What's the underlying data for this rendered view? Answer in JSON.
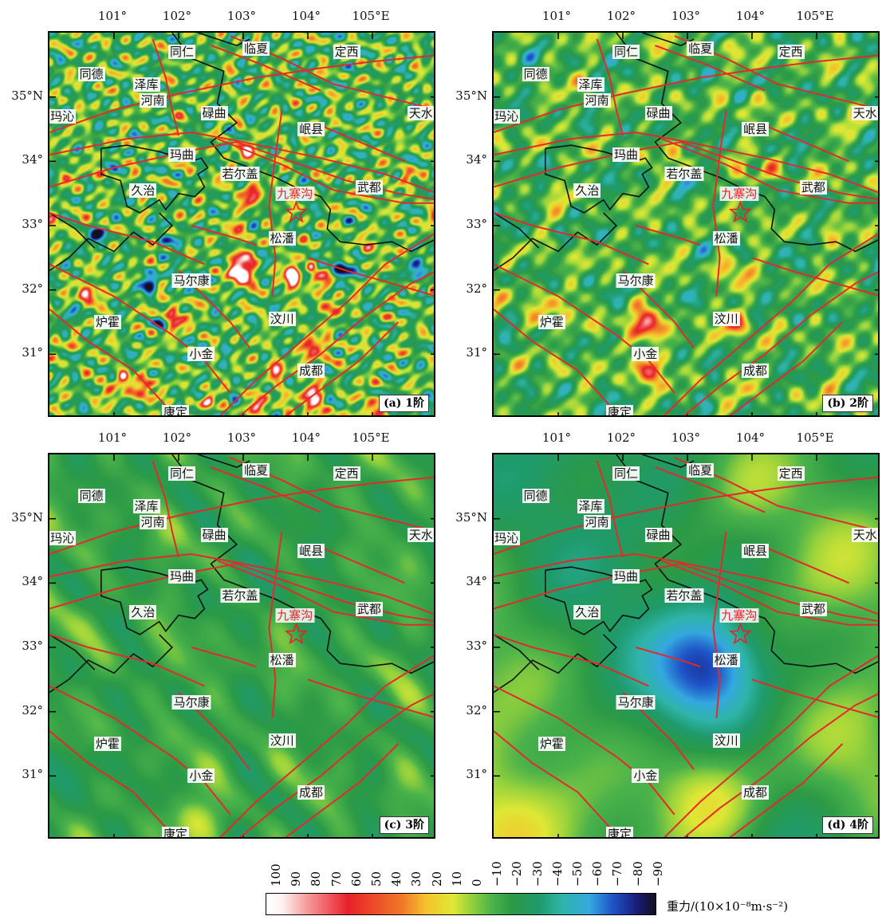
{
  "panels": [
    {
      "id": "a",
      "tag": "(a) 1阶",
      "left_lons": [
        "101°",
        "102°",
        "103°",
        "104°",
        "105°E"
      ],
      "lats": [
        "35°N",
        "34°",
        "33°",
        "32°",
        "31°"
      ]
    },
    {
      "id": "b",
      "tag": "(b) 2阶",
      "left_lons": [
        "101°",
        "102°",
        "103°",
        "104°",
        "105°E"
      ],
      "lats": [
        "35°N",
        "34°",
        "33°",
        "32°",
        "31°"
      ]
    },
    {
      "id": "c",
      "tag": "(c) 3阶",
      "left_lons": [
        "101°",
        "102°",
        "103°",
        "104°",
        "105°E"
      ],
      "lats": [
        "35°N",
        "34°",
        "33°",
        "32°",
        "31°"
      ]
    },
    {
      "id": "d",
      "tag": "(d) 4阶",
      "left_lons": [
        "101°",
        "102°",
        "103°",
        "104°",
        "105°E"
      ],
      "lats": [
        "35°N",
        "34°",
        "33°",
        "32°",
        "31°"
      ]
    }
  ],
  "axes": {
    "lon_labels": [
      "101°",
      "102°",
      "103°",
      "104°",
      "105°E"
    ],
    "lat_labels": [
      "35°N",
      "34°",
      "33°",
      "32°",
      "31°"
    ]
  },
  "cities": {
    "tongde": "同德",
    "zeku": "泽库",
    "henan": "河南",
    "tongren": "同仁",
    "linxia": "临夏",
    "dingxi": "定西",
    "maqin": "玛沁",
    "luqu": "碌曲",
    "minxian": "岷县",
    "tianshui": "天水",
    "maqu": "玛曲",
    "ruoergai": "若尔盖",
    "wudu": "武都",
    "jiuzhaigou": "九寨沟",
    "jiuzhi": "久治",
    "songpan": "松潘",
    "maerkang": "马尔康",
    "luhuo": "炉霍",
    "wenchuan": "汶川",
    "xiaojin": "小金",
    "chengdu": "成都",
    "kangding": "康定"
  },
  "colorbar": {
    "ticks": [
      "100",
      "90",
      "80",
      "70",
      "60",
      "50",
      "40",
      "30",
      "20",
      "10",
      "0",
      "−10",
      "−20",
      "−30",
      "−40",
      "−50",
      "−60",
      "−70",
      "−80",
      "−90"
    ],
    "unit": "重力/(10×10⁻⁸m·s⁻²)",
    "colors": [
      "#ffffff",
      "#e8202a",
      "#f07a28",
      "#f5c22e",
      "#dfe835",
      "#4cb34a",
      "#2c9a46",
      "#2fb4aa",
      "#35a9df",
      "#1e54c8",
      "#1a1e7a",
      "#120f1f"
    ]
  }
}
